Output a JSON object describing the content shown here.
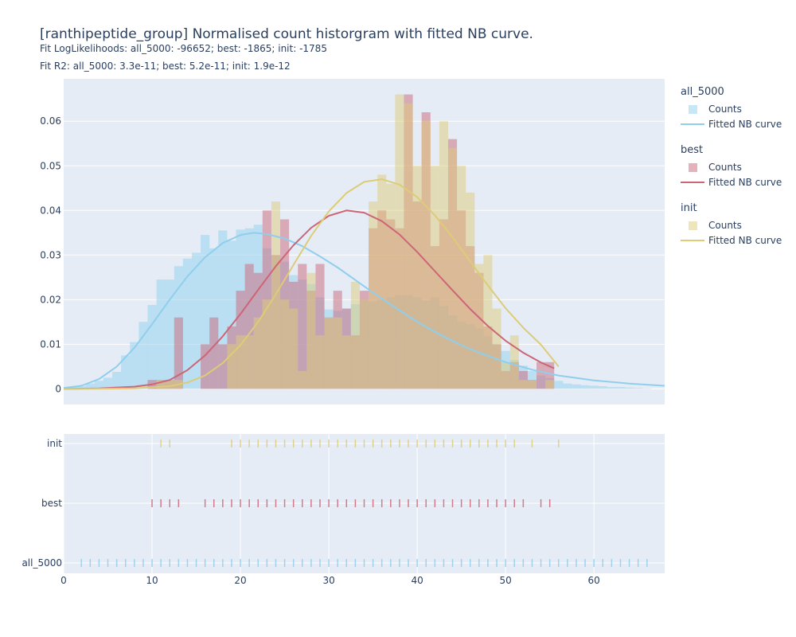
{
  "header": {
    "title": "[ranthipeptide_group] Normalised count historgram with fitted NB curve.",
    "subtitle_loglik": "Fit LogLikelihoods: all_5000: -96652; best: -1865; init: -1785",
    "subtitle_r2": "Fit R2: all_5000: 3.3e-11; best: 5.2e-11; init: 1.9e-12"
  },
  "colors": {
    "all_5000": "#8fcfed",
    "best": "#cc6677",
    "init": "#ddcc77",
    "plot_bg": "#e5ecf6",
    "grid": "#ffffff",
    "text": "#2a3f5f"
  },
  "legend": {
    "groups": [
      {
        "key": "all_5000",
        "title": "all_5000",
        "bar_label": "Counts",
        "line_label": "Fitted NB curve"
      },
      {
        "key": "best",
        "title": "best",
        "bar_label": "Counts",
        "line_label": "Fitted NB curve"
      },
      {
        "key": "init",
        "title": "init",
        "bar_label": "Counts",
        "line_label": "Fitted NB curve"
      }
    ]
  },
  "chart_data": {
    "type": "bar",
    "barmode": "overlay",
    "bin_width": 1,
    "x_range": [
      0,
      68
    ],
    "y_range": [
      -0.0035,
      0.0695
    ],
    "y_ticks": [
      0,
      0.01,
      0.02,
      0.03,
      0.04,
      0.05,
      0.06
    ],
    "y_tick_labels": [
      "0",
      "0.01",
      "0.02",
      "0.03",
      "0.04",
      "0.05",
      "0.06"
    ],
    "x_ticks": [
      0,
      10,
      20,
      30,
      40,
      50,
      60
    ],
    "x_tick_labels": [
      "0",
      "10",
      "20",
      "30",
      "40",
      "50",
      "60"
    ],
    "rug_categories": [
      "init",
      "best",
      "all_5000"
    ],
    "series": [
      {
        "name": "all_5000",
        "histogram": [
          [
            1,
            0.0004
          ],
          [
            2,
            0.0006
          ],
          [
            3,
            0.0012
          ],
          [
            4,
            0.0018
          ],
          [
            5,
            0.0025
          ],
          [
            6,
            0.0038
          ],
          [
            7,
            0.0075
          ],
          [
            8,
            0.0105
          ],
          [
            9,
            0.015
          ],
          [
            10,
            0.0188
          ],
          [
            11,
            0.0245
          ],
          [
            12,
            0.0245
          ],
          [
            13,
            0.0275
          ],
          [
            14,
            0.0292
          ],
          [
            15,
            0.0305
          ],
          [
            16,
            0.0345
          ],
          [
            17,
            0.0315
          ],
          [
            18,
            0.0355
          ],
          [
            19,
            0.0332
          ],
          [
            20,
            0.0357
          ],
          [
            21,
            0.036
          ],
          [
            22,
            0.0368
          ],
          [
            23,
            0.0315
          ],
          [
            24,
            0.03
          ],
          [
            25,
            0.0285
          ],
          [
            26,
            0.0255
          ],
          [
            27,
            0.0245
          ],
          [
            28,
            0.0235
          ],
          [
            29,
            0.0205
          ],
          [
            30,
            0.0178
          ],
          [
            31,
            0.0175
          ],
          [
            32,
            0.018
          ],
          [
            33,
            0.019
          ],
          [
            34,
            0.02
          ],
          [
            35,
            0.0195
          ],
          [
            36,
            0.02
          ],
          [
            37,
            0.0205
          ],
          [
            38,
            0.021
          ],
          [
            39,
            0.021
          ],
          [
            40,
            0.0205
          ],
          [
            41,
            0.0198
          ],
          [
            42,
            0.0205
          ],
          [
            43,
            0.0185
          ],
          [
            44,
            0.0165
          ],
          [
            45,
            0.015
          ],
          [
            46,
            0.0145
          ],
          [
            47,
            0.0135
          ],
          [
            48,
            0.0118
          ],
          [
            49,
            0.01
          ],
          [
            50,
            0.0085
          ],
          [
            51,
            0.0065
          ],
          [
            52,
            0.0052
          ],
          [
            53,
            0.004
          ],
          [
            54,
            0.003
          ],
          [
            55,
            0.0024
          ],
          [
            56,
            0.0018
          ],
          [
            57,
            0.0012
          ],
          [
            58,
            0.001
          ],
          [
            59,
            0.0008
          ],
          [
            60,
            0.0007
          ],
          [
            61,
            0.0006
          ],
          [
            62,
            0.0004
          ],
          [
            63,
            0.0004
          ],
          [
            64,
            0.0003
          ],
          [
            65,
            0.0002
          ],
          [
            66,
            0.0001
          ]
        ],
        "fitted_curve": [
          [
            0,
            0.0002
          ],
          [
            2,
            0.0007
          ],
          [
            4,
            0.0022
          ],
          [
            6,
            0.005
          ],
          [
            8,
            0.0092
          ],
          [
            10,
            0.0145
          ],
          [
            12,
            0.02
          ],
          [
            14,
            0.0252
          ],
          [
            16,
            0.0295
          ],
          [
            18,
            0.0327
          ],
          [
            20,
            0.0345
          ],
          [
            21.5,
            0.035
          ],
          [
            23,
            0.0347
          ],
          [
            25,
            0.0337
          ],
          [
            27,
            0.032
          ],
          [
            29,
            0.0297
          ],
          [
            31,
            0.0272
          ],
          [
            33,
            0.0244
          ],
          [
            35,
            0.0216
          ],
          [
            37,
            0.0189
          ],
          [
            39,
            0.0163
          ],
          [
            41,
            0.0139
          ],
          [
            43,
            0.0117
          ],
          [
            45,
            0.0098
          ],
          [
            47,
            0.0081
          ],
          [
            50,
            0.006
          ],
          [
            53,
            0.0043
          ],
          [
            56,
            0.003
          ],
          [
            60,
            0.0019
          ],
          [
            64,
            0.0012
          ],
          [
            68,
            0.0007
          ]
        ],
        "rug_x": [
          2,
          3,
          4,
          5,
          6,
          7,
          8,
          9,
          10,
          11,
          12,
          13,
          14,
          15,
          16,
          17,
          18,
          19,
          20,
          21,
          22,
          23,
          24,
          25,
          26,
          27,
          28,
          29,
          30,
          31,
          32,
          33,
          34,
          35,
          36,
          37,
          38,
          39,
          40,
          41,
          42,
          43,
          44,
          45,
          46,
          47,
          48,
          49,
          50,
          51,
          52,
          53,
          54,
          55,
          56,
          57,
          58,
          59,
          60,
          61,
          62,
          63,
          64,
          65,
          66
        ]
      },
      {
        "name": "best",
        "histogram": [
          [
            10,
            0.002
          ],
          [
            11,
            0.002
          ],
          [
            12,
            0.002
          ],
          [
            13,
            0.016
          ],
          [
            16,
            0.01
          ],
          [
            17,
            0.016
          ],
          [
            18,
            0.01
          ],
          [
            19,
            0.014
          ],
          [
            20,
            0.022
          ],
          [
            21,
            0.028
          ],
          [
            22,
            0.026
          ],
          [
            23,
            0.04
          ],
          [
            24,
            0.03
          ],
          [
            25,
            0.038
          ],
          [
            26,
            0.024
          ],
          [
            27,
            0.028
          ],
          [
            28,
            0.022
          ],
          [
            29,
            0.028
          ],
          [
            30,
            0.016
          ],
          [
            31,
            0.022
          ],
          [
            32,
            0.018
          ],
          [
            33,
            0.012
          ],
          [
            34,
            0.022
          ],
          [
            35,
            0.036
          ],
          [
            36,
            0.04
          ],
          [
            37,
            0.038
          ],
          [
            38,
            0.036
          ],
          [
            39,
            0.066
          ],
          [
            40,
            0.042
          ],
          [
            41,
            0.062
          ],
          [
            42,
            0.032
          ],
          [
            43,
            0.038
          ],
          [
            44,
            0.056
          ],
          [
            45,
            0.04
          ],
          [
            46,
            0.032
          ],
          [
            47,
            0.026
          ],
          [
            48,
            0.014
          ],
          [
            49,
            0.01
          ],
          [
            50,
            0.004
          ],
          [
            51,
            0.006
          ],
          [
            52,
            0.004
          ],
          [
            53,
            0.002
          ],
          [
            54,
            0.006
          ],
          [
            55,
            0.006
          ]
        ],
        "fitted_curve": [
          [
            0,
            0
          ],
          [
            4,
            0.0001
          ],
          [
            8,
            0.0005
          ],
          [
            10,
            0.001
          ],
          [
            12,
            0.002
          ],
          [
            14,
            0.0042
          ],
          [
            16,
            0.0075
          ],
          [
            18,
            0.0118
          ],
          [
            20,
            0.0168
          ],
          [
            22,
            0.0222
          ],
          [
            24,
            0.0275
          ],
          [
            26,
            0.0322
          ],
          [
            28,
            0.0361
          ],
          [
            30,
            0.0388
          ],
          [
            32,
            0.04
          ],
          [
            34,
            0.0395
          ],
          [
            36,
            0.0376
          ],
          [
            38,
            0.0346
          ],
          [
            40,
            0.0307
          ],
          [
            42,
            0.0264
          ],
          [
            44,
            0.0221
          ],
          [
            46,
            0.0179
          ],
          [
            48,
            0.0141
          ],
          [
            50,
            0.0108
          ],
          [
            52,
            0.0081
          ],
          [
            54,
            0.0059
          ],
          [
            55.5,
            0.0046
          ]
        ],
        "rug_x": [
          10,
          11,
          12,
          13,
          16,
          17,
          18,
          19,
          20,
          21,
          22,
          23,
          24,
          25,
          26,
          27,
          28,
          29,
          30,
          31,
          32,
          33,
          34,
          35,
          36,
          37,
          38,
          39,
          40,
          41,
          42,
          43,
          44,
          45,
          46,
          47,
          48,
          49,
          50,
          51,
          52,
          54,
          55
        ]
      },
      {
        "name": "init",
        "histogram": [
          [
            11,
            0.002
          ],
          [
            12,
            0.002
          ],
          [
            13,
            0.002
          ],
          [
            19,
            0.01
          ],
          [
            20,
            0.012
          ],
          [
            21,
            0.012
          ],
          [
            22,
            0.016
          ],
          [
            23,
            0.02
          ],
          [
            24,
            0.042
          ],
          [
            25,
            0.02
          ],
          [
            26,
            0.018
          ],
          [
            27,
            0.004
          ],
          [
            28,
            0.026
          ],
          [
            29,
            0.012
          ],
          [
            30,
            0.016
          ],
          [
            31,
            0.016
          ],
          [
            32,
            0.012
          ],
          [
            33,
            0.024
          ],
          [
            34,
            0.02
          ],
          [
            35,
            0.042
          ],
          [
            36,
            0.048
          ],
          [
            37,
            0.046
          ],
          [
            38,
            0.066
          ],
          [
            39,
            0.064
          ],
          [
            40,
            0.05
          ],
          [
            41,
            0.06
          ],
          [
            42,
            0.05
          ],
          [
            43,
            0.06
          ],
          [
            44,
            0.054
          ],
          [
            45,
            0.05
          ],
          [
            46,
            0.044
          ],
          [
            47,
            0.028
          ],
          [
            48,
            0.03
          ],
          [
            49,
            0.018
          ],
          [
            50,
            0.006
          ],
          [
            51,
            0.012
          ],
          [
            52,
            0.002
          ],
          [
            53,
            0.002
          ],
          [
            55,
            0.002
          ]
        ],
        "fitted_curve": [
          [
            0,
            0
          ],
          [
            8,
            0.0001
          ],
          [
            12,
            0.0006
          ],
          [
            14,
            0.0014
          ],
          [
            16,
            0.003
          ],
          [
            18,
            0.0058
          ],
          [
            20,
            0.0098
          ],
          [
            22,
            0.015
          ],
          [
            24,
            0.0212
          ],
          [
            26,
            0.0278
          ],
          [
            28,
            0.0343
          ],
          [
            30,
            0.0398
          ],
          [
            32,
            0.0439
          ],
          [
            34,
            0.0464
          ],
          [
            36,
            0.047
          ],
          [
            38,
            0.0458
          ],
          [
            40,
            0.043
          ],
          [
            42,
            0.0389
          ],
          [
            44,
            0.034
          ],
          [
            46,
            0.0286
          ],
          [
            48,
            0.0232
          ],
          [
            50,
            0.0181
          ],
          [
            52,
            0.0137
          ],
          [
            54,
            0.0099
          ],
          [
            56,
            0.005
          ]
        ],
        "rug_x": [
          11,
          12,
          19,
          20,
          21,
          22,
          23,
          24,
          25,
          26,
          27,
          28,
          29,
          30,
          31,
          32,
          33,
          34,
          35,
          36,
          37,
          38,
          39,
          40,
          41,
          42,
          43,
          44,
          45,
          46,
          47,
          48,
          49,
          50,
          51,
          53,
          56
        ]
      }
    ]
  }
}
